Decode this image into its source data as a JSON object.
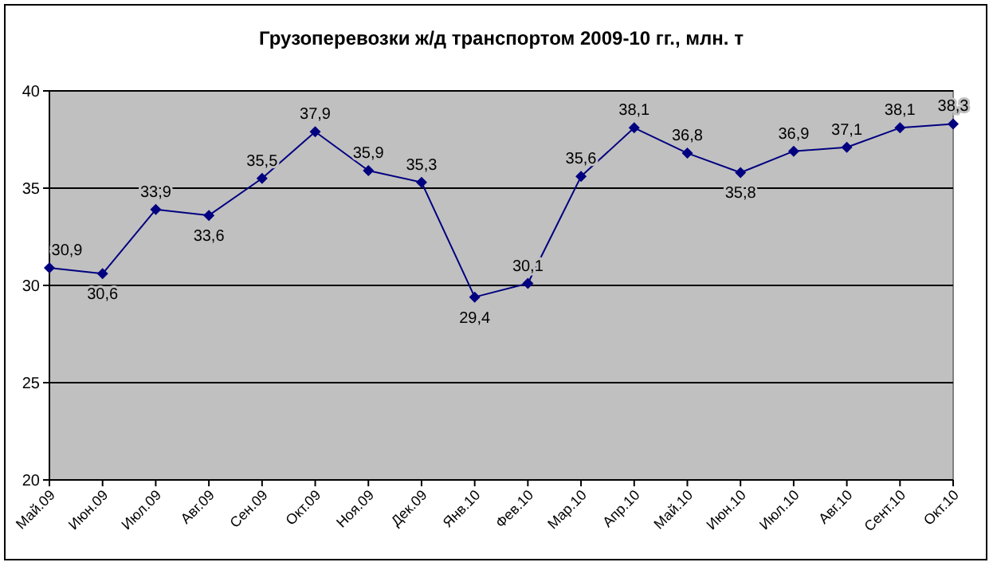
{
  "chart_data": {
    "type": "line",
    "title": "Грузоперевозки ж/д транспортом 2009-10 гг., млн. т",
    "categories": [
      "Май.09",
      "Июн.09",
      "Июл.09",
      "Авг.09",
      "Сен.09",
      "Окт.09",
      "Ноя.09",
      "Дек.09",
      "Янв.10",
      "Фев.10",
      "Мар.10",
      "Апр.10",
      "Май.10",
      "Июн.10",
      "Июл.10",
      "Авг.10",
      "Сент.10",
      "Окт.10"
    ],
    "series": [
      {
        "color": "#000080",
        "values": [
          30.9,
          30.6,
          33.9,
          33.6,
          35.5,
          37.9,
          35.9,
          35.3,
          29.4,
          30.1,
          35.6,
          38.1,
          36.8,
          35.8,
          36.9,
          37.1,
          38.1,
          38.3
        ],
        "value_labels": [
          "30,9",
          "30,6",
          "33,9",
          "33,6",
          "35,5",
          "37,9",
          "35,9",
          "35,3",
          "29,4",
          "30,1",
          "35,6",
          "38,1",
          "36,8",
          "35,8",
          "36,9",
          "37,1",
          "38,1",
          "38,3"
        ]
      }
    ],
    "ylim": [
      20,
      40
    ],
    "yticks": [
      20,
      25,
      30,
      35,
      40
    ],
    "grid": "y",
    "marker": "diamond",
    "line_style": "solid"
  }
}
